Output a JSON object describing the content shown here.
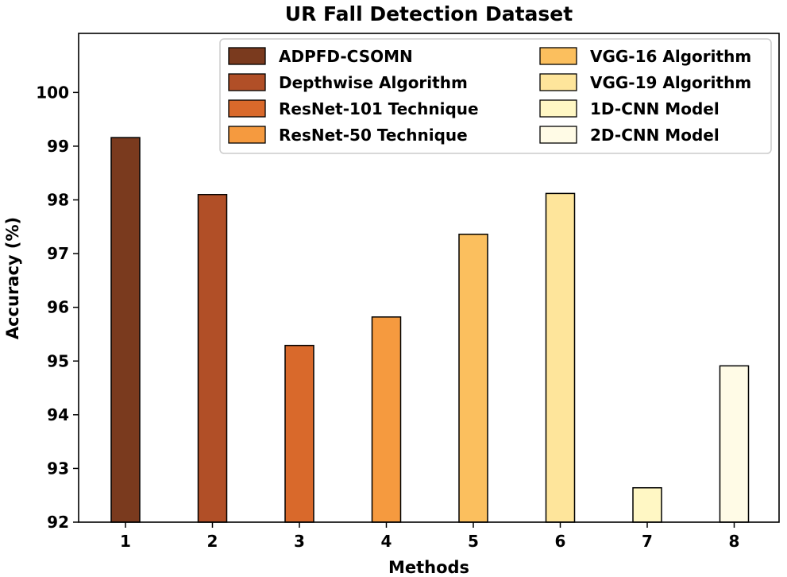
{
  "chart_data": {
    "type": "bar",
    "title": "UR Fall Detection Dataset",
    "xlabel": "Methods",
    "ylabel": "Accuracy (%)",
    "categories": [
      "1",
      "2",
      "3",
      "4",
      "5",
      "6",
      "7",
      "8"
    ],
    "values": [
      99.16,
      98.1,
      95.29,
      95.82,
      97.36,
      98.12,
      92.64,
      94.91
    ],
    "series_names": [
      "ADPFD-CSOMN",
      "Depthwise Algorithm",
      "ResNet-101 Technique",
      "ResNet-50 Technique",
      "VGG-16 Algorithm",
      "VGG-19 Algorithm",
      "1D-CNN Model",
      "2D-CNN Model"
    ],
    "colors": [
      "#7a3a1e",
      "#b14f27",
      "#d9692b",
      "#f59a3f",
      "#fbbf5e",
      "#fee59b",
      "#fff7c4",
      "#fffbe6"
    ],
    "ylim": [
      92,
      101.1
    ],
    "yticks": [
      "92",
      "93",
      "94",
      "95",
      "96",
      "97",
      "98",
      "99",
      "100"
    ],
    "grid": false,
    "legend_position": "top-right",
    "legend_columns": 2
  }
}
